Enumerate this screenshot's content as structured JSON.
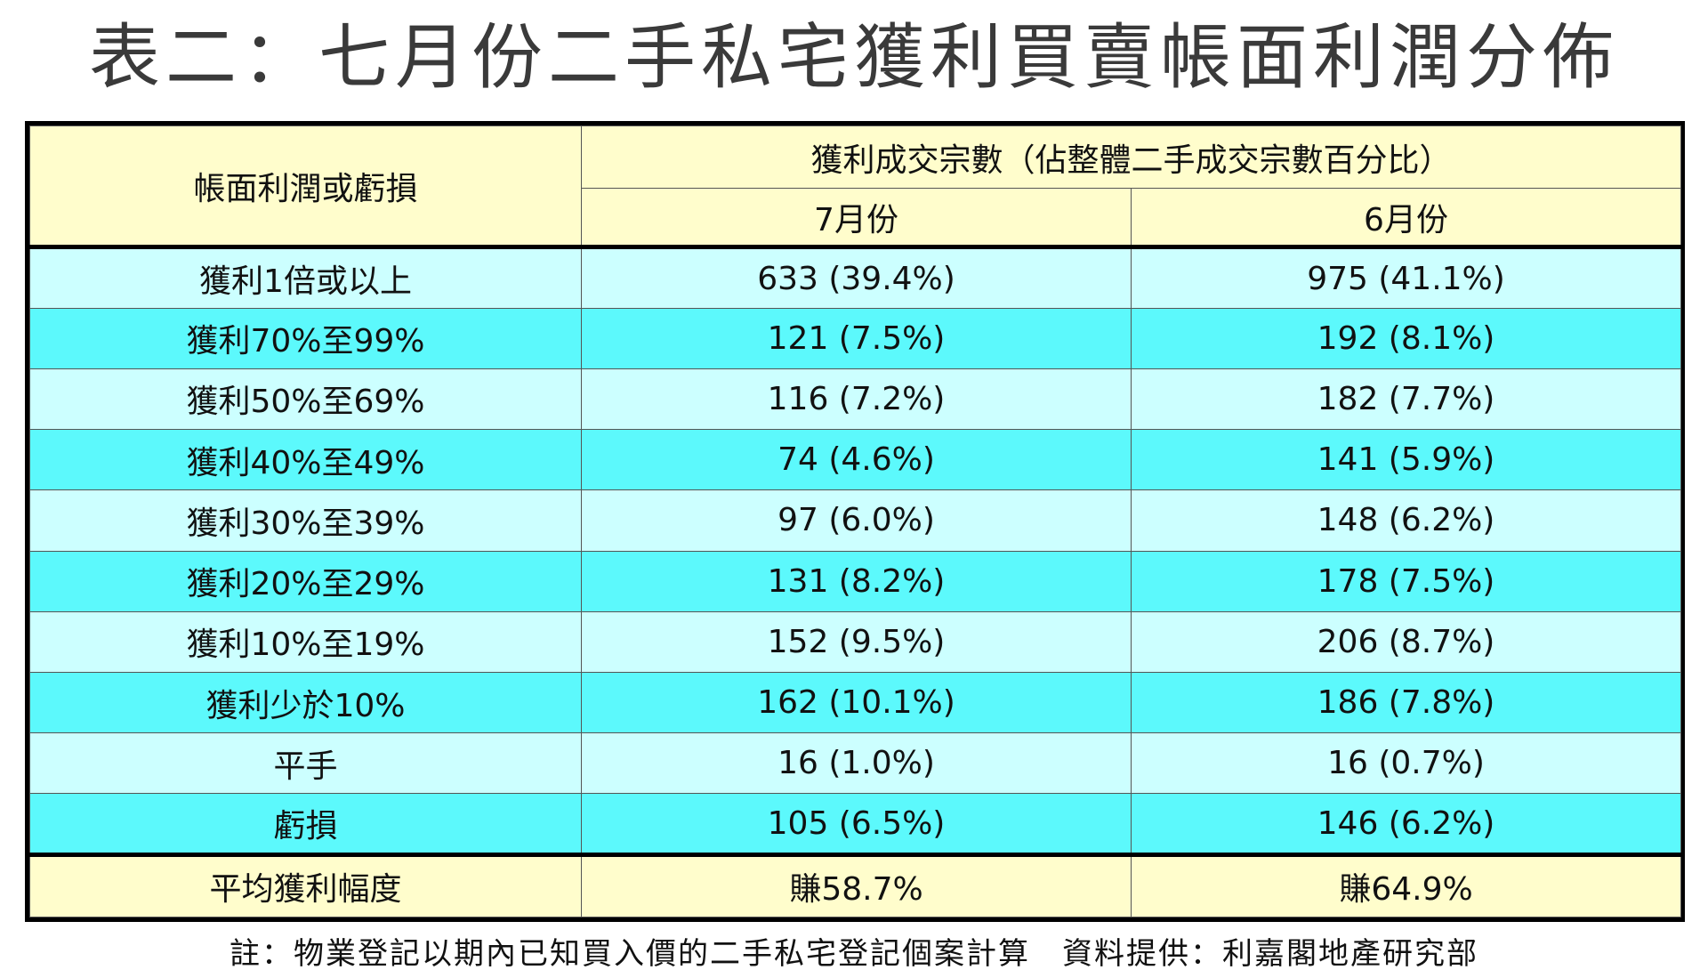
{
  "chart_data": {
    "type": "table",
    "title": "表二：七月份二手私宅獲利買賣帳面利潤分佈",
    "header": {
      "row_label": "帳面利潤或虧損",
      "group_label": "獲利成交宗數（佔整體二手成交宗數百分比）",
      "columns": [
        "7月份",
        "6月份"
      ]
    },
    "rows": [
      {
        "label": "獲利1倍或以上",
        "jul": "633 (39.4%)",
        "jun": "975 (41.1%)"
      },
      {
        "label": "獲利70%至99%",
        "jul": "121 (7.5%)",
        "jun": "192 (8.1%)"
      },
      {
        "label": "獲利50%至69%",
        "jul": "116 (7.2%)",
        "jun": "182 (7.7%)"
      },
      {
        "label": "獲利40%至49%",
        "jul": "74 (4.6%)",
        "jun": "141 (5.9%)"
      },
      {
        "label": "獲利30%至39%",
        "jul": "97 (6.0%)",
        "jun": "148 (6.2%)"
      },
      {
        "label": "獲利20%至29%",
        "jul": "131 (8.2%)",
        "jun": "178 (7.5%)"
      },
      {
        "label": "獲利10%至19%",
        "jul": "152 (9.5%)",
        "jun": "206 (8.7%)"
      },
      {
        "label": "獲利少於10%",
        "jul": "162 (10.1%)",
        "jun": "186 (7.8%)"
      },
      {
        "label": "平手",
        "jul": "16 (1.0%)",
        "jun": "16 (0.7%)"
      },
      {
        "label": "虧損",
        "jul": "105 (6.5%)",
        "jun": "146 (6.2%)"
      }
    ],
    "summary": {
      "label": "平均獲利幅度",
      "jul": "賺58.7%",
      "jun": "賺64.9%"
    },
    "footnote": "註：物業登記以期內已知買入價的二手私宅登記個案計算　資料提供：利嘉閣地產研究部",
    "colors": {
      "header_bg": "#fffdcc",
      "row_light": "#ccffff",
      "row_dark": "#5cf9fc"
    }
  }
}
